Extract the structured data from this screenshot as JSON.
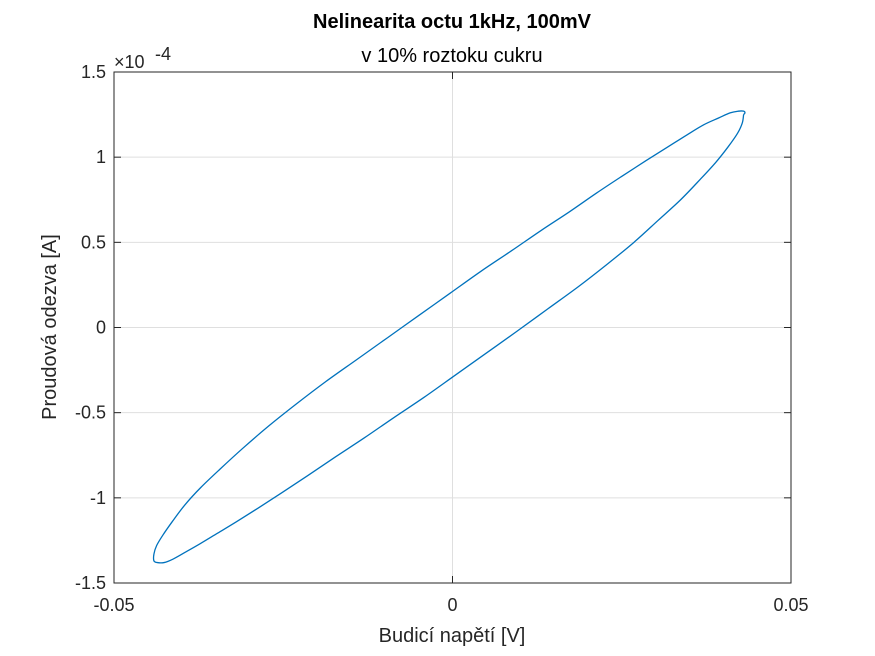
{
  "chart_data": {
    "type": "line",
    "title": "Nelinearita octu 1kHz, 100mV",
    "subtitle": "v 10% roztoku cukru",
    "xlabel": "Budicí napětí [V]",
    "ylabel": "Proudová odezva [A]",
    "xlim": [
      -0.05,
      0.05
    ],
    "ylim": [
      -0.00015,
      0.00015
    ],
    "y_exponent_label": "×10",
    "y_exponent_power": "-4",
    "x_ticks": [
      -0.05,
      0,
      0.05
    ],
    "x_tick_labels": [
      "-0.05",
      "0",
      "0.05"
    ],
    "y_ticks": [
      -0.00015,
      -0.0001,
      -5e-05,
      0,
      5e-05,
      0.0001,
      0.00015
    ],
    "y_tick_labels": [
      "-1.5",
      "-1",
      "-0.5",
      "0",
      "0.5",
      "1",
      "1.5"
    ],
    "grid": true,
    "series": [
      {
        "color": "#0072BD",
        "x": [
          0.043,
          0.0428,
          0.0421,
          0.0407,
          0.0389,
          0.0366,
          0.0337,
          0.0304,
          0.0268,
          0.0228,
          0.0186,
          0.0141,
          0.0096,
          0.005,
          0.0004,
          -0.0042,
          -0.0087,
          -0.0131,
          -0.0173,
          -0.0214,
          -0.0252,
          -0.0287,
          -0.0319,
          -0.0348,
          -0.0373,
          -0.0395,
          -0.0413,
          -0.0426,
          -0.0436,
          -0.0441,
          -0.0441,
          -0.0437,
          -0.0428,
          -0.0414,
          -0.0395,
          -0.0372,
          -0.0343,
          -0.031,
          -0.0272,
          -0.0231,
          -0.0188,
          -0.0142,
          -0.0096,
          -0.005,
          -0.0004,
          0.0042,
          0.0087,
          0.0131,
          0.0173,
          0.0213,
          0.0251,
          0.0286,
          0.0318,
          0.0346,
          0.0371,
          0.0393,
          0.041,
          0.0422,
          0.043,
          0.0432,
          0.043
        ],
        "y": [
          0.000125,
          0.00012,
          0.000114,
          0.000106,
          9.7e-05,
          8.7e-05,
          7.5e-05,
          6.3e-05,
          5e-05,
          3.7e-05,
          2.4e-05,
          1.1e-05,
          -2e-06,
          -1.5e-05,
          -2.8e-05,
          -4.1e-05,
          -5.3e-05,
          -6.5e-05,
          -7.6e-05,
          -8.7e-05,
          -9.7e-05,
          -0.000106,
          -0.000114,
          -0.000121,
          -0.000127,
          -0.000132,
          -0.000136,
          -0.000138,
          -0.000138,
          -0.000137,
          -0.000133,
          -0.000128,
          -0.000122,
          -0.000114,
          -0.000104,
          -9.4e-05,
          -8.3e-05,
          -7.1e-05,
          -5.8e-05,
          -4.5e-05,
          -3.2e-05,
          -1.9e-05,
          -6e-06,
          7e-06,
          2e-05,
          3.3e-05,
          4.5e-05,
          5.7e-05,
          6.8e-05,
          7.9e-05,
          8.9e-05,
          9.8e-05,
          0.000106,
          0.000113,
          0.000119,
          0.000123,
          0.000126,
          0.000127,
          0.000127,
          0.000126,
          0.000125
        ]
      }
    ]
  }
}
